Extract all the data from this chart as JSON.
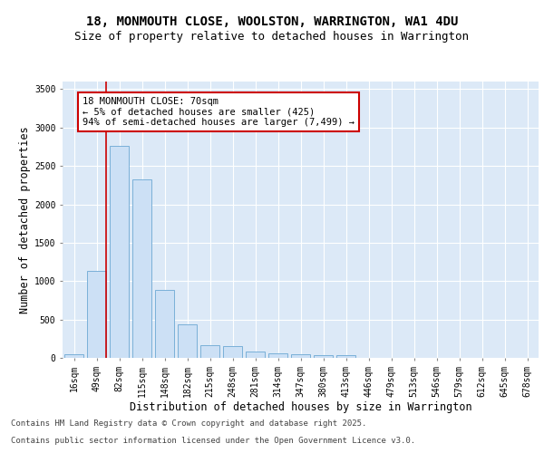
{
  "title_line1": "18, MONMOUTH CLOSE, WOOLSTON, WARRINGTON, WA1 4DU",
  "title_line2": "Size of property relative to detached houses in Warrington",
  "xlabel": "Distribution of detached houses by size in Warrington",
  "ylabel": "Number of detached properties",
  "categories": [
    "16sqm",
    "49sqm",
    "82sqm",
    "115sqm",
    "148sqm",
    "182sqm",
    "215sqm",
    "248sqm",
    "281sqm",
    "314sqm",
    "347sqm",
    "380sqm",
    "413sqm",
    "446sqm",
    "479sqm",
    "513sqm",
    "546sqm",
    "579sqm",
    "612sqm",
    "645sqm",
    "678sqm"
  ],
  "values": [
    50,
    1130,
    2760,
    2330,
    880,
    440,
    165,
    155,
    85,
    60,
    45,
    35,
    30,
    5,
    5,
    0,
    0,
    0,
    0,
    0,
    0
  ],
  "bar_color": "#cce0f5",
  "bar_edge_color": "#7ab0d8",
  "vline_color": "#cc0000",
  "annotation_text": "18 MONMOUTH CLOSE: 70sqm\n← 5% of detached houses are smaller (425)\n94% of semi-detached houses are larger (7,499) →",
  "ylim": [
    0,
    3600
  ],
  "yticks": [
    0,
    500,
    1000,
    1500,
    2000,
    2500,
    3000,
    3500
  ],
  "plot_bg_color": "#dce9f7",
  "fig_bg_color": "#ffffff",
  "grid_color": "#ffffff",
  "footer_line1": "Contains HM Land Registry data © Crown copyright and database right 2025.",
  "footer_line2": "Contains public sector information licensed under the Open Government Licence v3.0.",
  "title_fontsize": 10,
  "subtitle_fontsize": 9,
  "axis_label_fontsize": 8.5,
  "tick_fontsize": 7,
  "annotation_fontsize": 7.5,
  "footer_fontsize": 6.5
}
